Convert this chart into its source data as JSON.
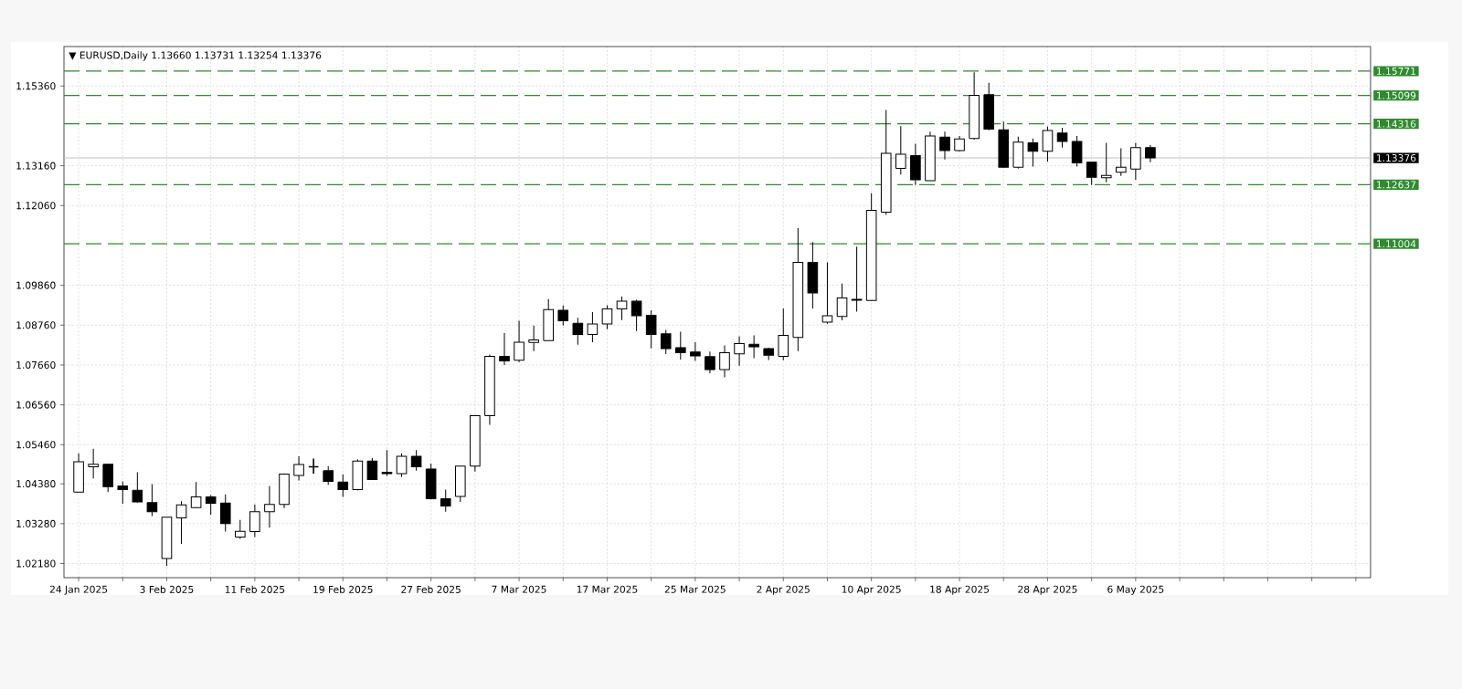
{
  "chart_data": {
    "type": "candlestick",
    "title": "▼ EURUSD,Daily 1.13660 1.13731 1.13254 1.13376",
    "categories": [
      "24 Jan 2025",
      null,
      null,
      null,
      null,
      null,
      "3 Feb 2025",
      null,
      null,
      null,
      null,
      null,
      "11 Feb 2025",
      null,
      null,
      null,
      null,
      null,
      "19 Feb 2025",
      null,
      null,
      null,
      null,
      null,
      "27 Feb 2025",
      null,
      null,
      null,
      null,
      null,
      "7 Mar 2025",
      null,
      null,
      null,
      null,
      null,
      "17 Mar 2025",
      null,
      null,
      null,
      null,
      null,
      "25 Mar 2025",
      null,
      null,
      null,
      null,
      null,
      "2 Apr 2025",
      null,
      null,
      null,
      null,
      null,
      "10 Apr 2025",
      null,
      null,
      null,
      null,
      null,
      "18 Apr 2025",
      null,
      null,
      null,
      null,
      null,
      "28 Apr 2025",
      null,
      null,
      null,
      null,
      null,
      "6 May 2025",
      null
    ],
    "ohlc": [
      [
        1.0415,
        1.0522,
        1.0413,
        1.0499
      ],
      [
        1.0485,
        1.0535,
        1.0453,
        1.0492
      ],
      [
        1.0492,
        1.0494,
        1.0415,
        1.043
      ],
      [
        1.0432,
        1.0445,
        1.0383,
        1.0422
      ],
      [
        1.042,
        1.047,
        1.0386,
        1.0388
      ],
      [
        1.0386,
        1.0437,
        1.0349,
        1.0361
      ],
      [
        1.0232,
        1.0347,
        1.0212,
        1.0346
      ],
      [
        1.0344,
        1.039,
        1.0272,
        1.038
      ],
      [
        1.0372,
        1.0443,
        1.0371,
        1.0402
      ],
      [
        1.0402,
        1.0407,
        1.0353,
        1.0384
      ],
      [
        1.0385,
        1.0409,
        1.0306,
        1.0328
      ],
      [
        1.0291,
        1.0338,
        1.0286,
        1.0307
      ],
      [
        1.0306,
        1.0381,
        1.0291,
        1.0361
      ],
      [
        1.0361,
        1.0432,
        1.0317,
        1.0381
      ],
      [
        1.0381,
        1.0467,
        1.0371,
        1.0465
      ],
      [
        1.0461,
        1.0514,
        1.0447,
        1.0491
      ],
      [
        1.0485,
        1.0508,
        1.0466,
        1.0485
      ],
      [
        1.0474,
        1.0487,
        1.0435,
        1.0445
      ],
      [
        1.0443,
        1.0464,
        1.0402,
        1.0422
      ],
      [
        1.0422,
        1.0506,
        1.042,
        1.0501
      ],
      [
        1.0501,
        1.0509,
        1.0449,
        1.045
      ],
      [
        1.047,
        1.0531,
        1.046,
        1.0466
      ],
      [
        1.0466,
        1.0522,
        1.0457,
        1.0514
      ],
      [
        1.0514,
        1.0531,
        1.0474,
        1.0485
      ],
      [
        1.0479,
        1.0494,
        1.0395,
        1.0397
      ],
      [
        1.0397,
        1.0422,
        1.0361,
        1.0377
      ],
      [
        1.0403,
        1.0487,
        1.0388,
        1.0487
      ],
      [
        1.0487,
        1.0626,
        1.0472,
        1.0626
      ],
      [
        1.0626,
        1.0795,
        1.0601,
        1.079
      ],
      [
        1.079,
        1.0854,
        1.0766,
        1.0777
      ],
      [
        1.0779,
        1.0888,
        1.0774,
        1.0829
      ],
      [
        1.0828,
        1.0875,
        1.0804,
        1.0835
      ],
      [
        1.0833,
        1.0948,
        1.0832,
        1.0919
      ],
      [
        1.0917,
        1.093,
        1.0875,
        1.0888
      ],
      [
        1.0881,
        1.0896,
        1.0822,
        1.085
      ],
      [
        1.085,
        1.0912,
        1.0829,
        1.0879
      ],
      [
        1.0879,
        1.0931,
        1.0865,
        1.0921
      ],
      [
        1.0921,
        1.0955,
        1.089,
        1.0942
      ],
      [
        1.0942,
        1.0946,
        1.086,
        1.0902
      ],
      [
        1.0903,
        1.0917,
        1.0812,
        1.085
      ],
      [
        1.0852,
        1.0863,
        1.0796,
        1.0811
      ],
      [
        1.0814,
        1.0858,
        1.0781,
        1.08
      ],
      [
        1.0802,
        1.0829,
        1.0777,
        1.0791
      ],
      [
        1.0789,
        1.0803,
        1.0743,
        1.0753
      ],
      [
        1.0753,
        1.082,
        1.0732,
        1.08
      ],
      [
        1.0797,
        1.0845,
        1.0764,
        1.0825
      ],
      [
        1.0823,
        1.0848,
        1.0785,
        1.0816
      ],
      [
        1.0811,
        1.0814,
        1.078,
        1.0793
      ],
      [
        1.079,
        1.0922,
        1.0779,
        1.0848
      ],
      [
        1.0842,
        1.1144,
        1.0804,
        1.1049
      ],
      [
        1.1049,
        1.1105,
        1.0922,
        1.0965
      ],
      [
        1.0884,
        1.1049,
        1.088,
        1.0902
      ],
      [
        1.09,
        1.0991,
        1.0889,
        1.0951
      ],
      [
        1.0947,
        1.1093,
        1.0913,
        1.0945
      ],
      [
        1.0944,
        1.124,
        1.0942,
        1.1193
      ],
      [
        1.1188,
        1.147,
        1.118,
        1.135
      ],
      [
        1.1309,
        1.1425,
        1.1292,
        1.1348
      ],
      [
        1.1344,
        1.1377,
        1.1263,
        1.1277
      ],
      [
        1.1275,
        1.141,
        1.1275,
        1.1398
      ],
      [
        1.1395,
        1.141,
        1.1333,
        1.1358
      ],
      [
        1.1358,
        1.1398,
        1.1355,
        1.139
      ],
      [
        1.1391,
        1.1574,
        1.1388,
        1.151
      ],
      [
        1.1512,
        1.1545,
        1.1414,
        1.1417
      ],
      [
        1.1415,
        1.1438,
        1.131,
        1.1312
      ],
      [
        1.1312,
        1.1396,
        1.1308,
        1.1381
      ],
      [
        1.1379,
        1.1391,
        1.1314,
        1.1356
      ],
      [
        1.1356,
        1.1424,
        1.1327,
        1.1413
      ],
      [
        1.1406,
        1.1421,
        1.1366,
        1.1383
      ],
      [
        1.1383,
        1.1398,
        1.1314,
        1.1324
      ],
      [
        1.1326,
        1.1326,
        1.1263,
        1.1284
      ],
      [
        1.1283,
        1.1379,
        1.127,
        1.1289
      ],
      [
        1.1298,
        1.1364,
        1.1288,
        1.1312
      ],
      [
        1.1307,
        1.1379,
        1.1277,
        1.1366
      ],
      [
        1.1366,
        1.13731,
        1.13254,
        1.13376
      ]
    ],
    "ylim": [
      1.0179,
      1.1645
    ],
    "yticks": [
      {
        "value": 1.0218,
        "label": "1.02180"
      },
      {
        "value": 1.0328,
        "label": "1.03280"
      },
      {
        "value": 1.0438,
        "label": "1.04380"
      },
      {
        "value": 1.0546,
        "label": "1.05460"
      },
      {
        "value": 1.0656,
        "label": "1.06560"
      },
      {
        "value": 1.0766,
        "label": "1.07660"
      },
      {
        "value": 1.0876,
        "label": "1.08760"
      },
      {
        "value": 1.0986,
        "label": "1.09860"
      },
      {
        "value": 1.1206,
        "label": "1.12060"
      },
      {
        "value": 1.1316,
        "label": "1.13160"
      },
      {
        "value": 1.1536,
        "label": "1.15360"
      }
    ],
    "grid": true,
    "ref_lines": [
      {
        "axis": "y",
        "value": 1.15771,
        "label": "1.15771",
        "color": "#2e8b2e",
        "line_style": "dashed"
      },
      {
        "axis": "y",
        "value": 1.15099,
        "label": "1.15099",
        "color": "#2e8b2e",
        "line_style": "dashed"
      },
      {
        "axis": "y",
        "value": 1.14316,
        "label": "1.14316",
        "color": "#2e8b2e",
        "line_style": "dashed"
      },
      {
        "axis": "y",
        "value": 1.12637,
        "label": "1.12637",
        "color": "#2e8b2e",
        "line_style": "dashed"
      },
      {
        "axis": "y",
        "value": 1.11004,
        "label": "1.11004",
        "color": "#2e8b2e",
        "line_style": "dashed"
      },
      {
        "axis": "y",
        "value": 1.13376,
        "label": "1.13376",
        "color": "#c0c0c0",
        "line_style": "solid"
      }
    ]
  }
}
